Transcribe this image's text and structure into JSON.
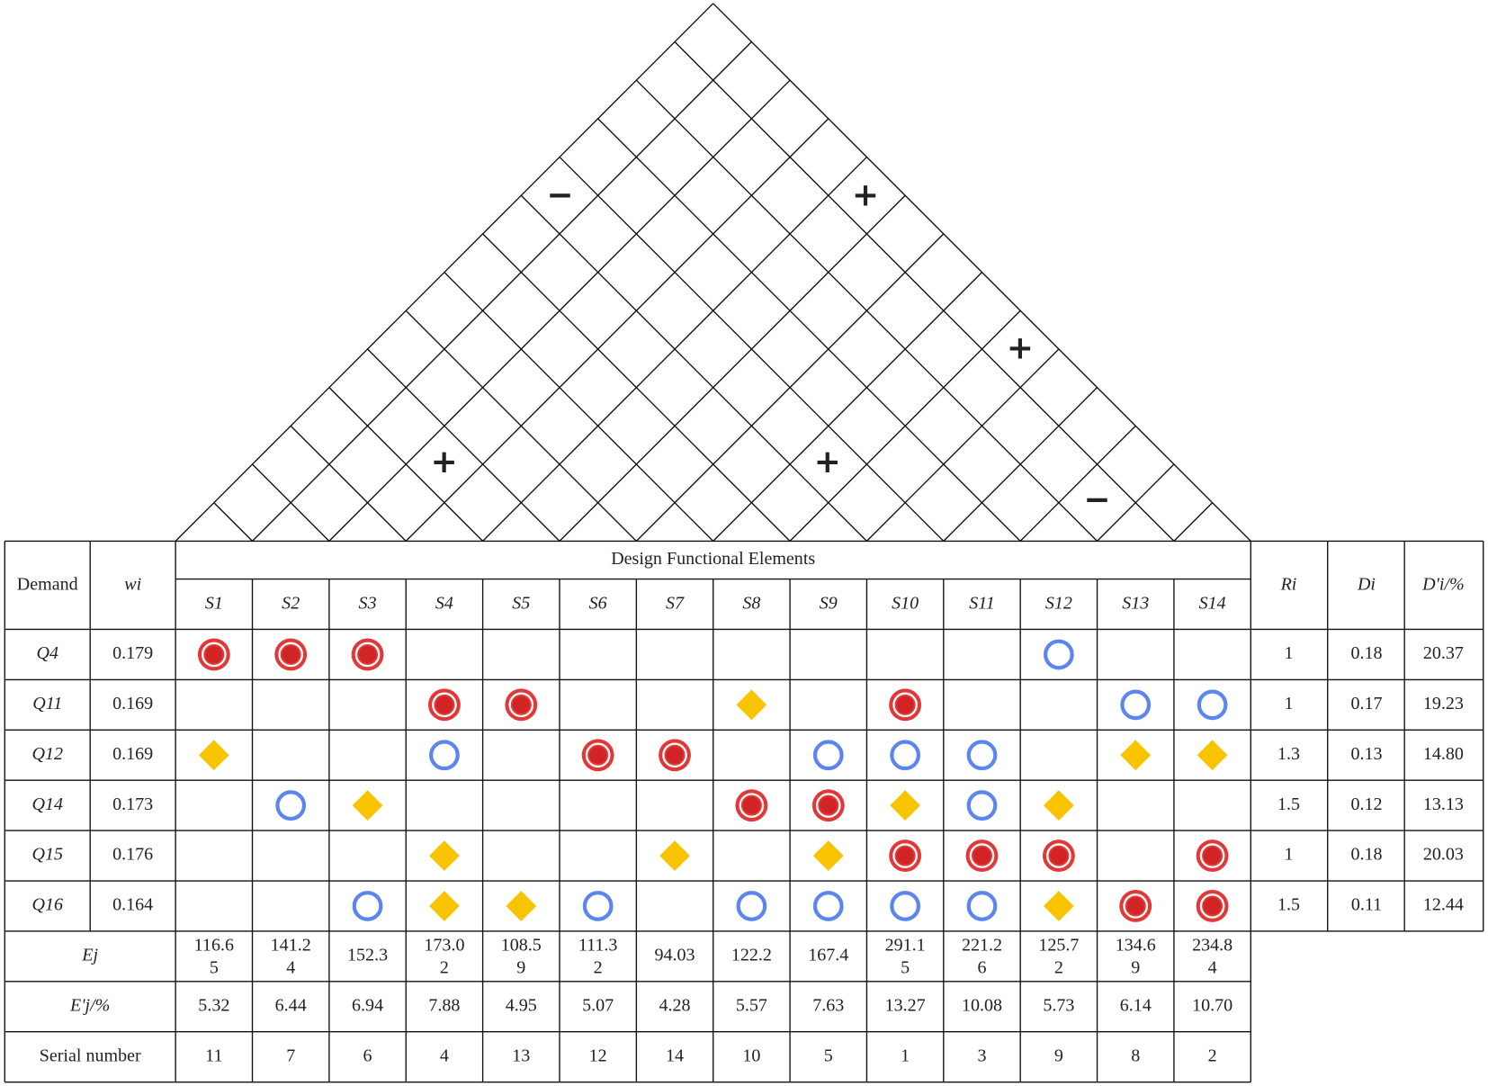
{
  "roof_marks": [
    {
      "symbol": "−",
      "color": "#f0a500"
    },
    {
      "symbol": "+",
      "color": "#e8401c"
    },
    {
      "symbol": "+",
      "color": "#e8401c"
    },
    {
      "symbol": "+",
      "color": "#e8401c"
    },
    {
      "symbol": "+",
      "color": "#e8401c"
    },
    {
      "symbol": "−",
      "color": "#f0a500"
    }
  ],
  "table": {
    "header": {
      "demand": "Demand",
      "weight": "wi",
      "group": "Design Functional Elements",
      "elements": [
        "S1",
        "S2",
        "S3",
        "S4",
        "S5",
        "S6",
        "S7",
        "S8",
        "S9",
        "S10",
        "S11",
        "S12",
        "S13",
        "S14"
      ],
      "ri": "Ri",
      "di": "Di",
      "dpi": "D'i/%"
    },
    "rows": [
      {
        "demand": "Q4",
        "wi": "0.179",
        "ri": "1",
        "di": "0.18",
        "dpi": "20.37"
      },
      {
        "demand": "Q11",
        "wi": "0.169",
        "ri": "1",
        "di": "0.17",
        "dpi": "19.23"
      },
      {
        "demand": "Q12",
        "wi": "0.169",
        "ri": "1.3",
        "di": "0.13",
        "dpi": "14.80"
      },
      {
        "demand": "Q14",
        "wi": "0.173",
        "ri": "1.5",
        "di": "0.12",
        "dpi": "13.13"
      },
      {
        "demand": "Q15",
        "wi": "0.176",
        "ri": "1",
        "di": "0.18",
        "dpi": "20.03"
      },
      {
        "demand": "Q16",
        "wi": "0.164",
        "ri": "1.5",
        "di": "0.11",
        "dpi": "12.44"
      }
    ],
    "ej": {
      "label": "Ej",
      "values": [
        "116.65",
        "141.24",
        "152.3",
        "173.02",
        "108.59",
        "111.32",
        "94.03",
        "122.2",
        "167.4",
        "291.15",
        "221.26",
        "125.72",
        "134.69",
        "234.84"
      ]
    },
    "ejp": {
      "label": "E'j/%",
      "values": [
        "5.32",
        "6.44",
        "6.94",
        "7.88",
        "4.95",
        "5.07",
        "4.28",
        "5.57",
        "7.63",
        "13.27",
        "10.08",
        "5.73",
        "6.14",
        "10.70"
      ]
    },
    "serial": {
      "label": "Serial number",
      "values": [
        "11",
        "7",
        "6",
        "4",
        "13",
        "12",
        "14",
        "10",
        "5",
        "1",
        "3",
        "9",
        "8",
        "2"
      ]
    }
  }
}
